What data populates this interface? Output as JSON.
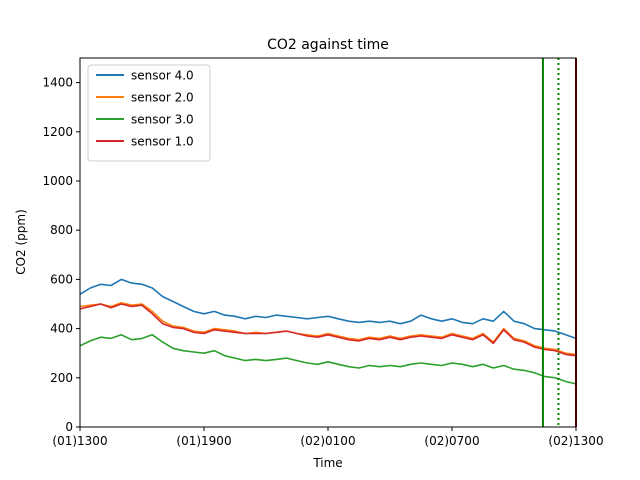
{
  "chart_data": {
    "type": "line",
    "title": "CO2 against  time",
    "xlabel": "Time",
    "ylabel": "CO2 (ppm)",
    "x_tick_labels": [
      "(01)1300",
      "(01)1900",
      "(02)0100",
      "(02)0700",
      "(02)1300"
    ],
    "x_tick_hours": [
      0,
      6,
      12,
      18,
      24
    ],
    "xlim_hours": [
      0,
      24
    ],
    "ylim": [
      0,
      1500
    ],
    "y_ticks": [
      0,
      200,
      400,
      600,
      800,
      1000,
      1200,
      1400
    ],
    "grid": false,
    "legend_position": "top-left",
    "series": [
      {
        "name": "sensor 4.0",
        "color": "#1f77b4",
        "x": [
          0,
          0.5,
          1,
          1.5,
          2,
          2.5,
          3,
          3.5,
          4,
          4.5,
          5,
          5.5,
          6,
          6.5,
          7,
          7.5,
          8,
          8.5,
          9,
          9.5,
          10,
          10.5,
          11,
          11.5,
          12,
          12.5,
          13,
          13.5,
          14,
          14.5,
          15,
          15.5,
          16,
          16.5,
          17,
          17.5,
          18,
          18.5,
          19,
          19.5,
          20,
          20.5,
          21,
          21.5,
          22,
          22.5,
          23,
          23.5,
          24
        ],
        "y": [
          540,
          565,
          580,
          575,
          600,
          585,
          580,
          565,
          530,
          510,
          490,
          470,
          460,
          470,
          455,
          450,
          440,
          450,
          445,
          455,
          450,
          445,
          440,
          445,
          450,
          440,
          430,
          425,
          430,
          425,
          430,
          420,
          430,
          455,
          440,
          430,
          440,
          425,
          420,
          440,
          430,
          470,
          430,
          420,
          400,
          395,
          390,
          375,
          360
        ]
      },
      {
        "name": "sensor 2.0",
        "color": "#ff7f0e",
        "x": [
          0,
          0.5,
          1,
          1.5,
          2,
          2.5,
          3,
          3.5,
          4,
          4.5,
          5,
          5.5,
          6,
          6.5,
          7,
          7.5,
          8,
          8.5,
          9,
          9.5,
          10,
          10.5,
          11,
          11.5,
          12,
          12.5,
          13,
          13.5,
          14,
          14.5,
          15,
          15.5,
          16,
          16.5,
          17,
          17.5,
          18,
          18.5,
          19,
          19.5,
          20,
          20.5,
          21,
          21.5,
          22,
          22.5,
          23,
          23.5,
          24
        ],
        "y": [
          490,
          495,
          500,
          490,
          505,
          495,
          500,
          470,
          430,
          410,
          405,
          390,
          385,
          400,
          395,
          390,
          380,
          385,
          380,
          385,
          390,
          380,
          375,
          370,
          380,
          370,
          360,
          355,
          365,
          360,
          370,
          360,
          370,
          375,
          370,
          365,
          380,
          370,
          360,
          380,
          345,
          400,
          360,
          350,
          330,
          320,
          315,
          300,
          295
        ]
      },
      {
        "name": "sensor 3.0",
        "color": "#2ca02c",
        "x": [
          0,
          0.5,
          1,
          1.5,
          2,
          2.5,
          3,
          3.5,
          4,
          4.5,
          5,
          5.5,
          6,
          6.5,
          7,
          7.5,
          8,
          8.5,
          9,
          9.5,
          10,
          10.5,
          11,
          11.5,
          12,
          12.5,
          13,
          13.5,
          14,
          14.5,
          15,
          15.5,
          16,
          16.5,
          17,
          17.5,
          18,
          18.5,
          19,
          19.5,
          20,
          20.5,
          21,
          21.5,
          22,
          22.5,
          23,
          23.5,
          24
        ],
        "y": [
          330,
          350,
          365,
          360,
          375,
          355,
          360,
          375,
          345,
          320,
          310,
          305,
          300,
          310,
          290,
          280,
          270,
          275,
          270,
          275,
          280,
          270,
          260,
          255,
          265,
          255,
          245,
          240,
          250,
          245,
          250,
          245,
          255,
          260,
          255,
          250,
          260,
          255,
          245,
          255,
          240,
          250,
          235,
          230,
          220,
          205,
          200,
          185,
          175
        ]
      },
      {
        "name": "sensor 1.0",
        "color": "#d62728",
        "x": [
          0,
          0.5,
          1,
          1.5,
          2,
          2.5,
          3,
          3.5,
          4,
          4.5,
          5,
          5.5,
          6,
          6.5,
          7,
          7.5,
          8,
          8.5,
          9,
          9.5,
          10,
          10.5,
          11,
          11.5,
          12,
          12.5,
          13,
          13.5,
          14,
          14.5,
          15,
          15.5,
          16,
          16.5,
          17,
          17.5,
          18,
          18.5,
          19,
          19.5,
          20,
          20.5,
          21,
          21.5,
          22,
          22.5,
          23,
          23.5,
          24
        ],
        "y": [
          480,
          490,
          500,
          485,
          500,
          490,
          495,
          460,
          420,
          405,
          400,
          385,
          380,
          395,
          390,
          385,
          380,
          380,
          380,
          385,
          390,
          380,
          370,
          365,
          375,
          365,
          355,
          350,
          360,
          355,
          365,
          355,
          365,
          370,
          365,
          360,
          375,
          365,
          355,
          375,
          340,
          395,
          355,
          345,
          325,
          315,
          310,
          295,
          290
        ]
      }
    ],
    "vertical_lines": [
      {
        "x_hours": 22.4,
        "color": "#008000",
        "style": "solid"
      },
      {
        "x_hours": 23.15,
        "color": "#008000",
        "style": "dotted"
      },
      {
        "x_hours": 24,
        "color": "#8b0000",
        "style": "solid"
      }
    ]
  }
}
